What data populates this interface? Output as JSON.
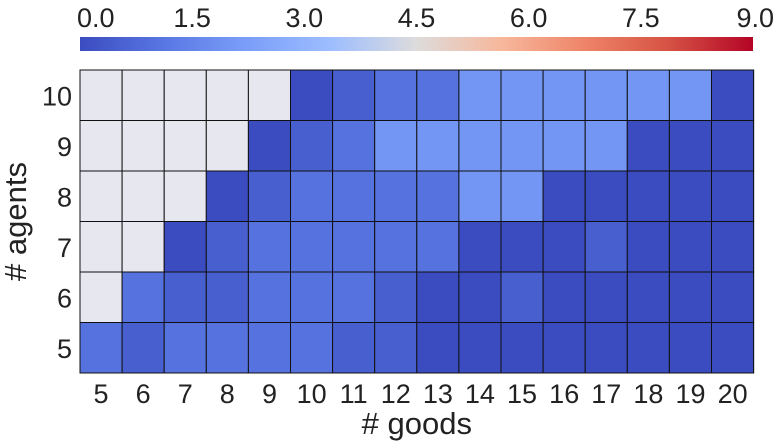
{
  "chart_data": {
    "type": "heatmap",
    "title": "",
    "xlabel": "# goods",
    "ylabel": "# agents",
    "x": [
      "5",
      "6",
      "7",
      "8",
      "9",
      "10",
      "11",
      "12",
      "13",
      "14",
      "15",
      "16",
      "17",
      "18",
      "19",
      "20"
    ],
    "y": [
      "5",
      "6",
      "7",
      "8",
      "9",
      "10"
    ],
    "values": [
      [
        1,
        0.5,
        1,
        1,
        1,
        1,
        0.5,
        0.5,
        0,
        0,
        0,
        0,
        0,
        0,
        0,
        0
      ],
      [
        null,
        1,
        0.5,
        0.5,
        1,
        1,
        1,
        0.5,
        0,
        0,
        0.5,
        0,
        0,
        0,
        0,
        0
      ],
      [
        null,
        null,
        0,
        0.5,
        1,
        1,
        1,
        1,
        1,
        0,
        0,
        0,
        0.5,
        0,
        0,
        0
      ],
      [
        null,
        null,
        null,
        0,
        0.5,
        1,
        1,
        1,
        1,
        2,
        2,
        0,
        0,
        0,
        0,
        0
      ],
      [
        null,
        null,
        null,
        null,
        0,
        0.5,
        1,
        2,
        2,
        2,
        2,
        2,
        2,
        0,
        0,
        0
      ],
      [
        null,
        null,
        null,
        null,
        null,
        0,
        0.5,
        1,
        1,
        2,
        2,
        2,
        2,
        2,
        2,
        0
      ]
    ],
    "missing_color": "#e7e7ef",
    "colorbar": {
      "min": 0.0,
      "max": 9.0,
      "ticks": [
        "0.0",
        "1.5",
        "3.0",
        "4.5",
        "6.0",
        "7.5",
        "9.0"
      ],
      "colormap": "coolwarm",
      "position": "top"
    }
  }
}
